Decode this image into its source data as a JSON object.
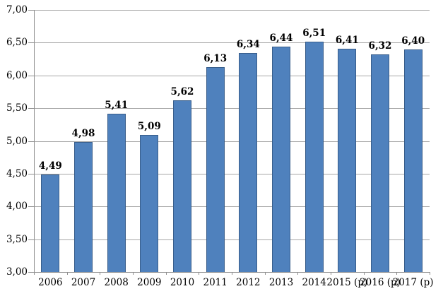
{
  "chart_data": {
    "type": "bar",
    "title": "",
    "xlabel": "",
    "ylabel": "",
    "categories": [
      "2006",
      "2007",
      "2008",
      "2009",
      "2010",
      "2011",
      "2012",
      "2013",
      "2014",
      "2015 (p)",
      "2016 (p)",
      "2017 (p)"
    ],
    "values": [
      4.49,
      4.98,
      5.41,
      5.09,
      5.62,
      6.13,
      6.34,
      6.44,
      6.51,
      6.41,
      6.32,
      6.4
    ],
    "data_labels": [
      "4,49",
      "4,98",
      "5,41",
      "5,09",
      "5,62",
      "6,13",
      "6,34",
      "6,44",
      "6,51",
      "6,41",
      "6,32",
      "6,40"
    ],
    "ylim": [
      3.0,
      7.0
    ],
    "ytick_step": 0.5,
    "ytick_labels": [
      "3,00",
      "3,50",
      "4,00",
      "4,50",
      "5,00",
      "5,50",
      "6,00",
      "6,50",
      "7,00"
    ],
    "decimal_separator": ",",
    "grid": true,
    "legend": false,
    "colors": {
      "bar_fill": "#4F81BD",
      "bar_border": "#385D8A",
      "gridline": "#A6A6A6",
      "axis": "#8E8E8E",
      "text": "#000000",
      "background": "#FFFFFF"
    }
  }
}
